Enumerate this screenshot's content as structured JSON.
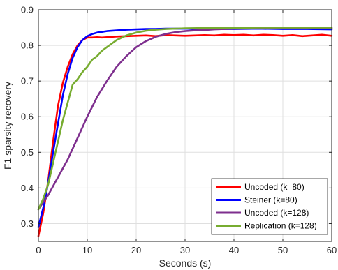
{
  "chart_data": {
    "type": "line",
    "xlabel": "Seconds (s)",
    "ylabel": "F1 sparsity recovery",
    "xlim": [
      0,
      60
    ],
    "ylim": [
      0.25,
      0.9
    ],
    "xticks": [
      0,
      10,
      20,
      30,
      40,
      50,
      60
    ],
    "yticks": [
      0.3,
      0.4,
      0.5,
      0.6,
      0.7,
      0.8,
      0.9
    ],
    "xtick_labels": [
      "0",
      "10",
      "20",
      "30",
      "40",
      "50",
      "60"
    ],
    "ytick_labels": [
      "0.3",
      "0.4",
      "0.5",
      "0.6",
      "0.7",
      "0.8",
      "0.9"
    ],
    "grid": true,
    "legend_position": "bottom-right",
    "series": [
      {
        "name": "Uncoded (k=80)",
        "color": "#ff0000",
        "x": [
          0,
          1,
          2,
          3,
          4,
          5,
          6,
          7,
          8,
          9,
          10,
          11,
          12,
          13,
          14,
          15,
          16,
          18,
          20,
          22,
          24,
          26,
          28,
          30,
          32,
          34,
          36,
          38,
          40,
          42,
          44,
          46,
          48,
          50,
          52,
          54,
          56,
          58,
          60
        ],
        "y": [
          0.265,
          0.33,
          0.42,
          0.53,
          0.63,
          0.695,
          0.74,
          0.775,
          0.8,
          0.815,
          0.822,
          0.822,
          0.823,
          0.822,
          0.823,
          0.824,
          0.825,
          0.826,
          0.827,
          0.828,
          0.826,
          0.829,
          0.828,
          0.827,
          0.828,
          0.829,
          0.828,
          0.83,
          0.829,
          0.83,
          0.828,
          0.83,
          0.829,
          0.827,
          0.829,
          0.826,
          0.828,
          0.83,
          0.827
        ]
      },
      {
        "name": "Steiner (k=80)",
        "color": "#0000ff",
        "x": [
          0,
          1,
          2,
          3,
          4,
          5,
          6,
          7,
          8,
          9,
          10,
          11,
          12,
          13,
          14,
          15,
          16,
          18,
          20,
          22,
          24,
          26,
          28,
          30,
          35,
          40,
          45,
          50,
          55,
          60
        ],
        "y": [
          0.29,
          0.345,
          0.415,
          0.5,
          0.58,
          0.66,
          0.72,
          0.765,
          0.795,
          0.815,
          0.826,
          0.832,
          0.836,
          0.838,
          0.84,
          0.841,
          0.842,
          0.844,
          0.845,
          0.846,
          0.846,
          0.847,
          0.847,
          0.847,
          0.846,
          0.846,
          0.847,
          0.846,
          0.846,
          0.845
        ]
      },
      {
        "name": "Uncoded (k=128)",
        "color": "#7e2f8e",
        "x": [
          0,
          1,
          2,
          3,
          4,
          5,
          6,
          7,
          8,
          10,
          12,
          14,
          16,
          18,
          20,
          22,
          24,
          26,
          28,
          30,
          32,
          34,
          36,
          38,
          40,
          45,
          50,
          55,
          60
        ],
        "y": [
          0.34,
          0.36,
          0.38,
          0.405,
          0.43,
          0.455,
          0.48,
          0.51,
          0.54,
          0.6,
          0.655,
          0.7,
          0.74,
          0.77,
          0.795,
          0.812,
          0.824,
          0.832,
          0.837,
          0.84,
          0.842,
          0.843,
          0.845,
          0.846,
          0.847,
          0.848,
          0.848,
          0.848,
          0.848
        ]
      },
      {
        "name": "Replication (k=128)",
        "color": "#77ac30",
        "x": [
          0,
          1,
          2,
          3,
          4,
          5,
          6,
          7,
          8,
          9,
          10,
          11,
          12,
          13,
          14,
          15,
          16,
          18,
          20,
          22,
          24,
          26,
          28,
          30,
          35,
          40,
          45,
          50,
          55,
          60
        ],
        "y": [
          0.34,
          0.37,
          0.41,
          0.47,
          0.53,
          0.59,
          0.64,
          0.69,
          0.705,
          0.725,
          0.74,
          0.76,
          0.77,
          0.785,
          0.795,
          0.805,
          0.815,
          0.828,
          0.836,
          0.841,
          0.844,
          0.846,
          0.847,
          0.848,
          0.849,
          0.849,
          0.85,
          0.85,
          0.85,
          0.85
        ]
      }
    ]
  }
}
